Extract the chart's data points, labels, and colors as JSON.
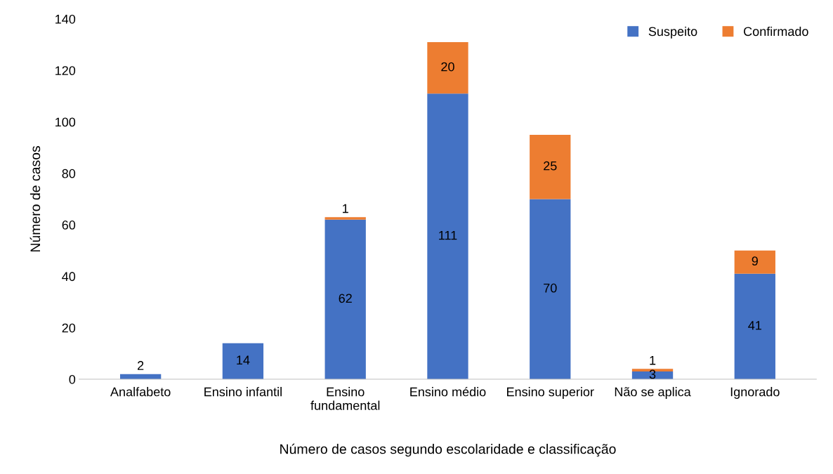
{
  "chart_data": {
    "type": "bar",
    "stacked": true,
    "xlabel": "Número de casos segundo escolaridade e classificação",
    "ylabel": "Número de casos",
    "categories": [
      "Analfabeto",
      "Ensino infantil",
      "Ensino fundamental",
      "Ensino médio",
      "Ensino superior",
      "Não se aplica",
      "Ignorado"
    ],
    "series": [
      {
        "name": "Suspeito",
        "color": "#4472c4",
        "values": [
          2,
          14,
          62,
          111,
          70,
          3,
          41
        ]
      },
      {
        "name": "Confirmado",
        "color": "#ed7d31",
        "values": [
          null,
          null,
          1,
          20,
          25,
          1,
          9
        ]
      }
    ],
    "ylim": [
      0,
      140
    ],
    "yticks": [
      0,
      20,
      40,
      60,
      80,
      100,
      120,
      140
    ],
    "data_labels": true,
    "grid": false,
    "legend": "top right"
  }
}
